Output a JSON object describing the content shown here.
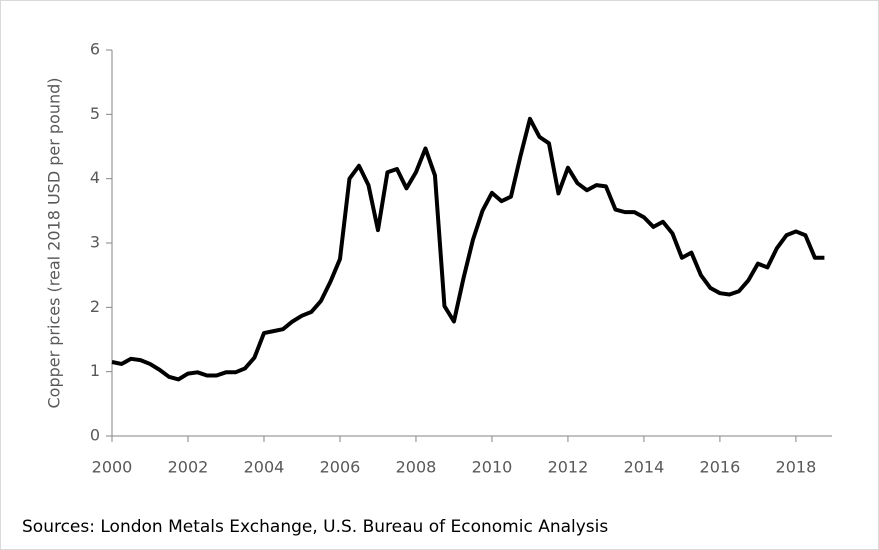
{
  "chart_data": {
    "type": "line",
    "y_label": "Copper prices (real 2018 USD per pound)",
    "source": "Sources: London Metals Exchange, U.S.  Bureau of Economic Analysis",
    "x": [
      2000,
      2000.25,
      2000.5,
      2000.75,
      2001,
      2001.25,
      2001.5,
      2001.75,
      2002,
      2002.25,
      2002.5,
      2002.75,
      2003,
      2003.25,
      2003.5,
      2003.75,
      2004,
      2004.25,
      2004.5,
      2004.75,
      2005,
      2005.25,
      2005.5,
      2005.75,
      2006,
      2006.25,
      2006.5,
      2006.75,
      2007,
      2007.25,
      2007.5,
      2007.75,
      2008,
      2008.25,
      2008.5,
      2008.75,
      2009,
      2009.25,
      2009.5,
      2009.75,
      2010,
      2010.25,
      2010.5,
      2010.75,
      2011,
      2011.25,
      2011.5,
      2011.75,
      2012,
      2012.25,
      2012.5,
      2012.75,
      2013,
      2013.25,
      2013.5,
      2013.75,
      2014,
      2014.25,
      2014.5,
      2014.75,
      2015,
      2015.25,
      2015.5,
      2015.75,
      2016,
      2016.25,
      2016.5,
      2016.75,
      2017,
      2017.25,
      2017.5,
      2017.75,
      2018,
      2018.25,
      2018.5,
      2018.75
    ],
    "series": [
      {
        "color": "#000000",
        "values": [
          1.15,
          1.12,
          1.2,
          1.18,
          1.12,
          1.03,
          0.92,
          0.88,
          0.97,
          0.99,
          0.94,
          0.94,
          0.99,
          0.99,
          1.05,
          1.22,
          1.6,
          1.63,
          1.66,
          1.78,
          1.87,
          1.93,
          2.1,
          2.4,
          2.75,
          4.0,
          4.2,
          3.9,
          3.2,
          4.1,
          4.15,
          3.85,
          4.1,
          4.47,
          4.05,
          2.02,
          1.78,
          2.45,
          3.05,
          3.5,
          3.78,
          3.65,
          3.72,
          4.35,
          4.93,
          4.65,
          4.55,
          3.77,
          4.17,
          3.93,
          3.82,
          3.9,
          3.88,
          3.52,
          3.48,
          3.48,
          3.4,
          3.25,
          3.33,
          3.15,
          2.77,
          2.85,
          2.5,
          2.3,
          2.22,
          2.2,
          2.25,
          2.42,
          2.68,
          2.62,
          2.92,
          3.12,
          3.18,
          3.12,
          2.77,
          2.77
        ]
      }
    ],
    "xlim": [
      2000,
      2018.95
    ],
    "xticks": [
      2000,
      2002,
      2004,
      2006,
      2008,
      2010,
      2012,
      2014,
      2016,
      2018
    ],
    "ylim": [
      0,
      6
    ],
    "yticks": [
      0,
      1,
      2,
      3,
      4,
      5,
      6
    ]
  }
}
